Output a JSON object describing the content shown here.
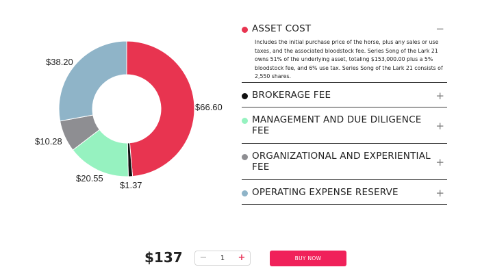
{
  "chart_data": {
    "type": "pie",
    "donut": true,
    "slices": [
      {
        "label": "$66.60",
        "value": 66.6,
        "color": "#e83450"
      },
      {
        "label": "$1.37",
        "value": 1.37,
        "color": "#111111"
      },
      {
        "label": "$20.55",
        "value": 20.55,
        "color": "#96f2c0"
      },
      {
        "label": "$10.28",
        "value": 10.28,
        "color": "#8e8e92"
      },
      {
        "label": "$38.20",
        "value": 38.2,
        "color": "#8fb4c8"
      }
    ]
  },
  "accordion": {
    "items": [
      {
        "title": "ASSET COST",
        "color": "#e83450",
        "toggle": "−",
        "description": "Includes the initial purchase price of the horse, plus any sales or use taxes, and the associated bloodstock fee. Series Song of the Lark 21 owns 51% of the underlying asset, totaling $153,000.00 plus a 5% bloodstock fee, and 6% use tax. Series Song of the Lark 21 consists of 2,550 shares."
      },
      {
        "title": "BROKERAGE FEE",
        "color": "#111111",
        "toggle": "+"
      },
      {
        "title": "MANAGEMENT AND DUE DILIGENCE FEE",
        "color": "#96f2c0",
        "toggle": "+"
      },
      {
        "title": "ORGANIZATIONAL AND EXPERIENTIAL FEE",
        "color": "#8e8e92",
        "toggle": "+"
      },
      {
        "title": "OPERATING EXPENSE RESERVE",
        "color": "#8fb4c8",
        "toggle": "+"
      }
    ]
  },
  "purchase": {
    "price": "$137",
    "quantity": "1",
    "minus": "−",
    "plus": "+",
    "buy_label": "BUY NOW"
  }
}
